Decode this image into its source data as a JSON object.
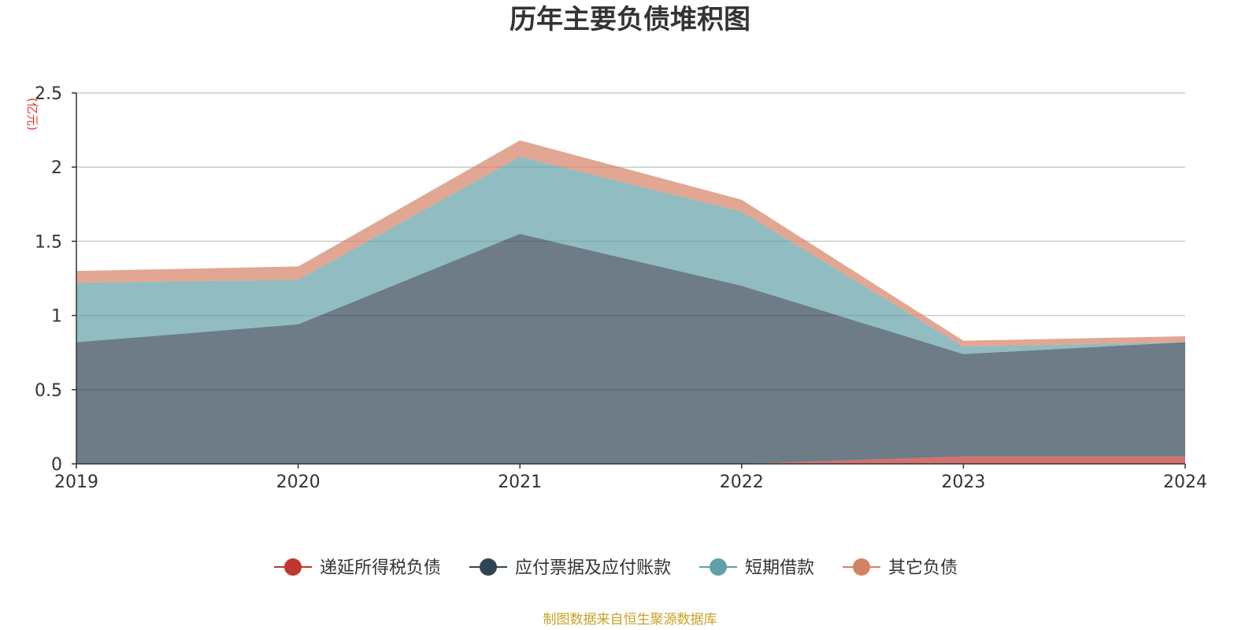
{
  "chart_data": {
    "type": "area",
    "stacked": true,
    "title": "历年主要负债堆积图",
    "unit": "(亿元)",
    "x": [
      "2019",
      "2020",
      "2021",
      "2022",
      "2023",
      "2024"
    ],
    "ylim": [
      0,
      2.5
    ],
    "yticks": [
      "0",
      "0.5",
      "1",
      "1.5",
      "2",
      "2.5"
    ],
    "grid": true,
    "legend_position": "bottom",
    "series": [
      {
        "name": "递延所得税负债",
        "color": "#c23531",
        "values": [
          0,
          0,
          0,
          0,
          0.05,
          0.05
        ]
      },
      {
        "name": "应付票据及应付账款",
        "color": "#2f4554",
        "values": [
          0.82,
          0.94,
          1.55,
          1.2,
          0.69,
          0.77
        ]
      },
      {
        "name": "短期借款",
        "color": "#61a0a8",
        "values": [
          0.4,
          0.3,
          0.52,
          0.5,
          0.05,
          0.0
        ]
      },
      {
        "name": "其它负债",
        "color": "#d48265",
        "values": [
          0.08,
          0.09,
          0.11,
          0.08,
          0.04,
          0.04
        ]
      }
    ],
    "source": "制图数据来自恒生聚源数据库"
  }
}
